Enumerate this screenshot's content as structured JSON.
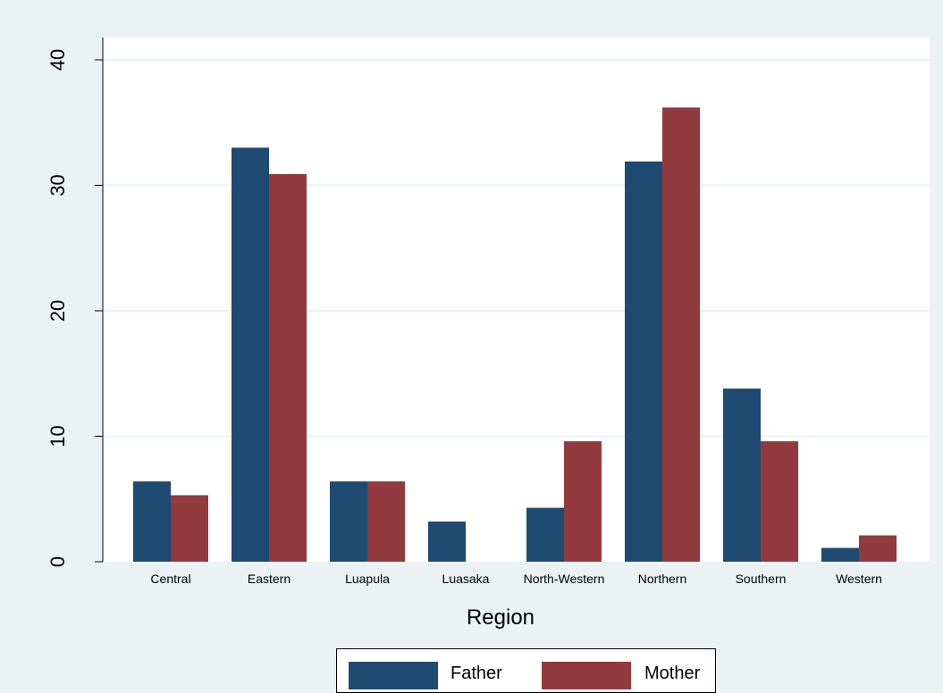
{
  "chart_data": {
    "type": "bar",
    "xlabel": "Region",
    "ylabel": "",
    "ylim": [
      0,
      42
    ],
    "yticks": [
      0,
      10,
      20,
      30,
      40
    ],
    "grid": true,
    "legend_position": "bottom",
    "categories": [
      "Central",
      "Eastern",
      "Luapula",
      "Luasaka",
      "North-Western",
      "Northern",
      "Southern",
      "Western"
    ],
    "series": [
      {
        "name": "Father",
        "color": "#1f4a71",
        "values": [
          6.4,
          33.0,
          6.4,
          3.2,
          4.3,
          31.9,
          13.8,
          1.1
        ]
      },
      {
        "name": "Mother",
        "color": "#923a3e",
        "values": [
          5.3,
          30.9,
          6.4,
          0,
          9.6,
          36.2,
          9.6,
          2.1
        ]
      }
    ]
  }
}
